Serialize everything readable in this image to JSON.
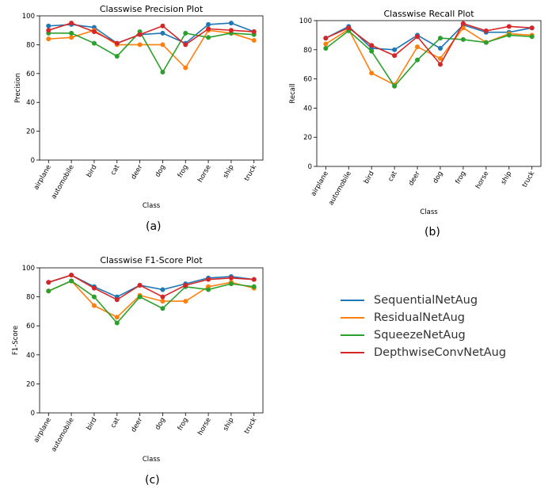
{
  "colors": {
    "SequentialNetAug": "#1f77b4",
    "ResidualNetAug": "#ff7f0e",
    "SqueezeNetAug": "#2ca02c",
    "DepthwiseConvNetAug": "#d62728"
  },
  "legend": {
    "items": [
      "SequentialNetAug",
      "ResidualNetAug",
      "SqueezeNetAug",
      "DepthwiseConvNetAug"
    ]
  },
  "captions": {
    "a": "(a)",
    "b": "(b)",
    "c": "(c)"
  },
  "chart_data": [
    {
      "id": "precision",
      "type": "line",
      "title": "Classwise Precision Plot",
      "xlabel": "Class",
      "ylabel": "Precision",
      "ylim": [
        0,
        100
      ],
      "yticks": [
        0,
        20,
        40,
        60,
        80,
        100
      ],
      "grid": false,
      "categories": [
        "airplane",
        "automobile",
        "bird",
        "cat",
        "deer",
        "dog",
        "frog",
        "horse",
        "ship",
        "truck"
      ],
      "series": [
        {
          "name": "SequentialNetAug",
          "values": [
            93,
            94,
            92,
            81,
            87,
            88,
            81,
            94,
            95,
            89
          ]
        },
        {
          "name": "ResidualNetAug",
          "values": [
            84,
            85,
            90,
            80,
            80,
            80,
            64,
            90,
            88,
            83
          ]
        },
        {
          "name": "SqueezeNetAug",
          "values": [
            88,
            88,
            81,
            72,
            89,
            61,
            88,
            85,
            88,
            87
          ]
        },
        {
          "name": "DepthwiseConvNetAug",
          "values": [
            90,
            95,
            89,
            81,
            87,
            93,
            80,
            91,
            90,
            89
          ]
        }
      ]
    },
    {
      "id": "recall",
      "type": "line",
      "title": "Classwise Recall Plot",
      "xlabel": "Class",
      "ylabel": "Recall",
      "ylim": [
        0,
        100
      ],
      "yticks": [
        0,
        20,
        40,
        60,
        80,
        100
      ],
      "grid": false,
      "categories": [
        "airplane",
        "automobile",
        "bird",
        "cat",
        "deer",
        "dog",
        "frog",
        "horse",
        "ship",
        "truck"
      ],
      "series": [
        {
          "name": "SequentialNetAug",
          "values": [
            88,
            96,
            81,
            80,
            90,
            81,
            97,
            92,
            92,
            95
          ]
        },
        {
          "name": "ResidualNetAug",
          "values": [
            84,
            94,
            64,
            56,
            82,
            74,
            95,
            85,
            91,
            90
          ]
        },
        {
          "name": "SqueezeNetAug",
          "values": [
            81,
            93,
            79,
            55,
            73,
            88,
            87,
            85,
            90,
            89
          ]
        },
        {
          "name": "DepthwiseConvNetAug",
          "values": [
            88,
            95,
            83,
            76,
            89,
            70,
            98,
            93,
            96,
            95
          ]
        }
      ]
    },
    {
      "id": "f1",
      "type": "line",
      "title": "Classwise F1-Score Plot",
      "xlabel": "Class",
      "ylabel": "F1-Score",
      "ylim": [
        0,
        100
      ],
      "yticks": [
        0,
        20,
        40,
        60,
        80,
        100
      ],
      "grid": false,
      "categories": [
        "airplane",
        "automobile",
        "bird",
        "cat",
        "deer",
        "dog",
        "frog",
        "horse",
        "ship",
        "truck"
      ],
      "series": [
        {
          "name": "SequentialNetAug",
          "values": [
            90,
            95,
            87,
            80,
            88,
            85,
            89,
            93,
            94,
            92
          ]
        },
        {
          "name": "ResidualNetAug",
          "values": [
            84,
            91,
            74,
            66,
            81,
            77,
            77,
            87,
            90,
            86
          ]
        },
        {
          "name": "SqueezeNetAug",
          "values": [
            84,
            91,
            80,
            62,
            80,
            72,
            87,
            85,
            89,
            87
          ]
        },
        {
          "name": "DepthwiseConvNetAug",
          "values": [
            90,
            95,
            86,
            78,
            88,
            80,
            88,
            92,
            93,
            92
          ]
        }
      ]
    }
  ]
}
